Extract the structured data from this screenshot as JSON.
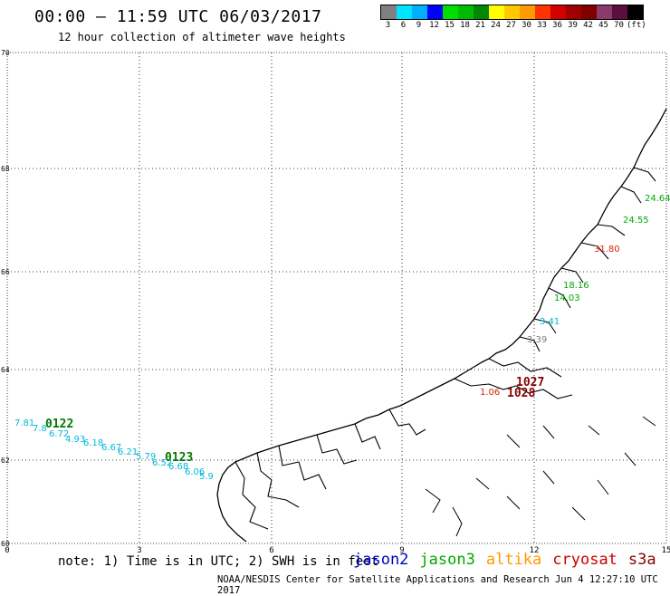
{
  "header": {
    "title": "00:00 – 11:59 UTC 06/03/2017",
    "subtitle": "12 hour collection of altimeter wave heights"
  },
  "legend": {
    "colors": [
      "#808080",
      "#00e5ff",
      "#00b0ff",
      "#0000ff",
      "#00dd00",
      "#00bb00",
      "#008800",
      "#ffff00",
      "#ffc800",
      "#ff9a00",
      "#ff3300",
      "#d40000",
      "#a00000",
      "#800000",
      "#8b3a6e",
      "#5a0f3c",
      "#000000"
    ],
    "labels": [
      "3",
      "6",
      "9",
      "12",
      "15",
      "18",
      "21",
      "24",
      "27",
      "30",
      "33",
      "36",
      "39",
      "42",
      "45",
      "70",
      "(ft)"
    ]
  },
  "axes": {
    "lat_labels": [
      "70",
      "68",
      "66",
      "64",
      "62",
      "60"
    ],
    "lon_labels": [
      "0",
      "3",
      "6",
      "9",
      "12",
      "15"
    ]
  },
  "tracks": [
    {
      "label": "0122",
      "color": "#007700"
    },
    {
      "label": "0123",
      "color": "#007700"
    },
    {
      "label": "1027",
      "color": "#880000"
    },
    {
      "label": "1028",
      "color": "#880000"
    }
  ],
  "wave_values": [
    {
      "text": "7.81",
      "color": "#00b8d8"
    },
    {
      "text": "7.8",
      "color": "#00b8d8"
    },
    {
      "text": "6.72",
      "color": "#00b8d8"
    },
    {
      "text": "4.93",
      "color": "#00b8d8"
    },
    {
      "text": "6.18",
      "color": "#00b8d8"
    },
    {
      "text": "6.67",
      "color": "#00b8d8"
    },
    {
      "text": "6.21",
      "color": "#00b8d8"
    },
    {
      "text": "5.79",
      "color": "#00b8d8"
    },
    {
      "text": "6.52",
      "color": "#00b8d8"
    },
    {
      "text": "6.68",
      "color": "#00b8d8"
    },
    {
      "text": "6.06",
      "color": "#00b8d8"
    },
    {
      "text": "5.9",
      "color": "#00b8d8"
    },
    {
      "text": "18.16",
      "color": "#00aa00"
    },
    {
      "text": "14.03",
      "color": "#00aa00"
    },
    {
      "text": "24.55",
      "color": "#00aa00"
    },
    {
      "text": "24.64",
      "color": "#00aa00"
    },
    {
      "text": "31.80",
      "color": "#dd2200"
    },
    {
      "text": "1.06",
      "color": "#dd2200"
    },
    {
      "text": "3.39",
      "color": "#808080"
    },
    {
      "text": "3.41",
      "color": "#00b8d8"
    }
  ],
  "footer": {
    "note": "note: 1) Time is in UTC; 2) SWH is in feet",
    "satellites": [
      {
        "name": "jason2",
        "color": "#0000cc"
      },
      {
        "name": "jason3",
        "color": "#00aa00"
      },
      {
        "name": "altika",
        "color": "#ff9900"
      },
      {
        "name": "cryosat",
        "color": "#cc0000"
      },
      {
        "name": "s3a",
        "color": "#880000"
      }
    ],
    "credit": "NOAA/NESDIS Center for Satellite Applications and Research   Jun  4 12:27:10 UTC 2017"
  }
}
